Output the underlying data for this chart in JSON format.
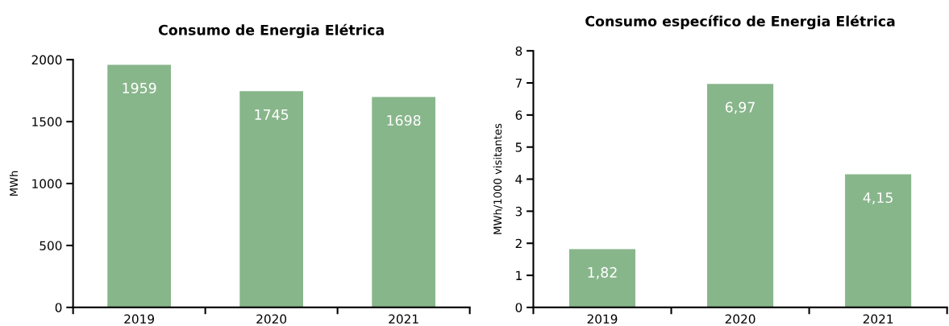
{
  "chart_data": [
    {
      "type": "bar",
      "title": "Consumo de Energia Elétrica",
      "ylabel": "MWh",
      "categories": [
        "2019",
        "2020",
        "2021"
      ],
      "values": [
        1959,
        1745,
        1698
      ],
      "color": "#88b68b",
      "ylim": [
        0,
        2000
      ],
      "yticks": [
        0,
        500,
        1000,
        1500,
        2000
      ],
      "data_labels": true,
      "grid": false,
      "legend": false
    },
    {
      "type": "bar",
      "title": "Consumo específico de Energia Elétrica",
      "ylabel": "MWh/1000 visitantes",
      "categories": [
        "2019",
        "2020",
        "2021"
      ],
      "values": [
        1.82,
        6.97,
        4.15
      ],
      "value_labels": [
        "1,82",
        "6,97",
        "4,15"
      ],
      "color": "#88b68b",
      "ylim": [
        0,
        8
      ],
      "yticks": [
        0,
        1,
        2,
        3,
        4,
        5,
        6,
        7,
        8
      ],
      "grid": false,
      "legend": false
    }
  ]
}
